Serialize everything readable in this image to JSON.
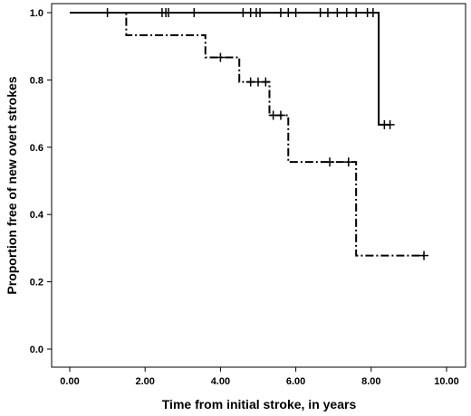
{
  "chart_data": {
    "type": "line",
    "subtype": "kaplan-meier step",
    "title": "",
    "xlabel": "Time from initial stroke, in years",
    "ylabel": "Proportion free of new overt strokes",
    "xlim": [
      0,
      10
    ],
    "ylim": [
      0,
      1
    ],
    "x_ticks": [
      "0.00",
      "2.00",
      "4.00",
      "6.00",
      "8.00",
      "10.00"
    ],
    "y_ticks": [
      "0.0",
      "0.2",
      "0.4",
      "0.6",
      "0.8",
      "1.0"
    ],
    "grid": false,
    "legend": "none",
    "series": [
      {
        "line_style": "solid",
        "steps": [
          [
            0,
            1.0
          ],
          [
            8.2,
            0.667
          ]
        ],
        "end_x": 8.5,
        "censored": [
          [
            1.0,
            1.0
          ],
          [
            2.45,
            1.0
          ],
          [
            2.55,
            1.0
          ],
          [
            2.62,
            1.0
          ],
          [
            3.3,
            1.0
          ],
          [
            4.6,
            1.0
          ],
          [
            4.8,
            1.0
          ],
          [
            4.95,
            1.0
          ],
          [
            5.05,
            1.0
          ],
          [
            5.6,
            1.0
          ],
          [
            5.8,
            1.0
          ],
          [
            6.0,
            1.0
          ],
          [
            6.65,
            1.0
          ],
          [
            6.85,
            1.0
          ],
          [
            7.1,
            1.0
          ],
          [
            7.35,
            1.0
          ],
          [
            7.6,
            1.0
          ],
          [
            7.9,
            1.0
          ],
          [
            8.05,
            1.0
          ],
          [
            8.35,
            0.667
          ],
          [
            8.5,
            0.667
          ]
        ]
      },
      {
        "line_style": "dash-dot",
        "steps": [
          [
            0,
            1.0
          ],
          [
            1.5,
            0.933
          ],
          [
            3.6,
            0.867
          ],
          [
            4.5,
            0.794
          ],
          [
            5.3,
            0.695
          ],
          [
            5.8,
            0.556
          ],
          [
            7.6,
            0.278
          ]
        ],
        "end_x": 9.4,
        "censored": [
          [
            4.0,
            0.867
          ],
          [
            4.8,
            0.794
          ],
          [
            5.0,
            0.794
          ],
          [
            5.2,
            0.794
          ],
          [
            5.4,
            0.695
          ],
          [
            5.6,
            0.695
          ],
          [
            6.9,
            0.556
          ],
          [
            7.4,
            0.556
          ],
          [
            9.4,
            0.278
          ]
        ]
      }
    ]
  }
}
